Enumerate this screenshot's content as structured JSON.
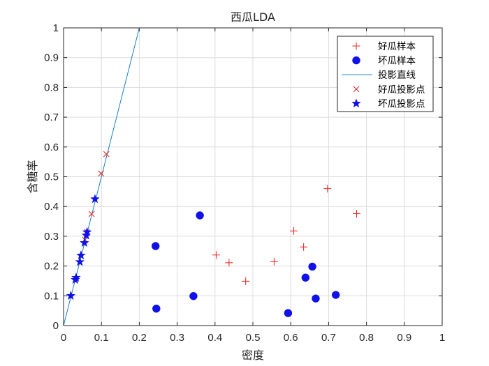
{
  "chart_data": {
    "type": "scatter",
    "title": "西瓜LDA",
    "xlabel": "密度",
    "ylabel": "含糖率",
    "xlim": [
      0,
      1
    ],
    "ylim": [
      0,
      1
    ],
    "xticks": [
      "0",
      "0.1",
      "0.2",
      "0.3",
      "0.4",
      "0.5",
      "0.6",
      "0.7",
      "0.8",
      "0.9",
      "1"
    ],
    "yticks": [
      "0",
      "0.1",
      "0.2",
      "0.3",
      "0.4",
      "0.5",
      "0.6",
      "0.7",
      "0.8",
      "0.9",
      "1"
    ],
    "grid": true,
    "legend_position": "top-right",
    "series": [
      {
        "name": "好瓜样本",
        "marker": "plus",
        "color": "#e8201c",
        "points": [
          [
            0.697,
            0.46
          ],
          [
            0.774,
            0.376
          ],
          [
            0.634,
            0.264
          ],
          [
            0.608,
            0.318
          ],
          [
            0.556,
            0.215
          ],
          [
            0.403,
            0.237
          ],
          [
            0.481,
            0.149
          ],
          [
            0.437,
            0.211
          ]
        ]
      },
      {
        "name": "坏瓜样本",
        "marker": "circle",
        "color": "#1010e8",
        "points": [
          [
            0.666,
            0.091
          ],
          [
            0.243,
            0.267
          ],
          [
            0.245,
            0.057
          ],
          [
            0.343,
            0.099
          ],
          [
            0.639,
            0.161
          ],
          [
            0.657,
            0.198
          ],
          [
            0.36,
            0.37
          ],
          [
            0.593,
            0.042
          ],
          [
            0.719,
            0.103
          ]
        ]
      },
      {
        "name": "投影直线",
        "marker": "line",
        "color": "#1a7fc0",
        "points": [
          [
            0,
            0
          ],
          [
            0.2,
            1.0
          ]
        ]
      },
      {
        "name": "好瓜投影点",
        "marker": "x",
        "color": "#e8201c",
        "points": [
          [
            0.113,
            0.576
          ],
          [
            0.099,
            0.511
          ],
          [
            0.074,
            0.375
          ],
          [
            0.06,
            0.3
          ],
          [
            0.057,
            0.288
          ],
          [
            0.062,
            0.315
          ]
        ]
      },
      {
        "name": "坏瓜投影点",
        "marker": "star",
        "color": "#1010e8",
        "points": [
          [
            0.083,
            0.425
          ],
          [
            0.062,
            0.314
          ],
          [
            0.06,
            0.303
          ],
          [
            0.055,
            0.278
          ],
          [
            0.046,
            0.236
          ],
          [
            0.043,
            0.214
          ],
          [
            0.033,
            0.161
          ],
          [
            0.031,
            0.154
          ],
          [
            0.019,
            0.1
          ]
        ]
      }
    ]
  }
}
